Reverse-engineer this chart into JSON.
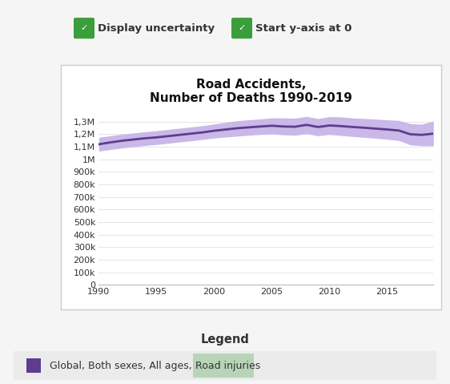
{
  "title": "Road Accidents,\nNumber of Deaths 1990-2019",
  "years": [
    1990,
    1991,
    1992,
    1993,
    1994,
    1995,
    1996,
    1997,
    1998,
    1999,
    2000,
    2001,
    2002,
    2003,
    2004,
    2005,
    2006,
    2007,
    2008,
    2009,
    2010,
    2011,
    2012,
    2013,
    2014,
    2015,
    2016,
    2017,
    2018,
    2019
  ],
  "values": [
    1120000,
    1135000,
    1148000,
    1158000,
    1168000,
    1175000,
    1185000,
    1195000,
    1205000,
    1215000,
    1228000,
    1238000,
    1248000,
    1255000,
    1262000,
    1268000,
    1262000,
    1260000,
    1275000,
    1258000,
    1270000,
    1265000,
    1258000,
    1252000,
    1245000,
    1238000,
    1230000,
    1200000,
    1195000,
    1205000
  ],
  "upper": [
    1175000,
    1188000,
    1200000,
    1210000,
    1220000,
    1228000,
    1238000,
    1248000,
    1258000,
    1268000,
    1282000,
    1295000,
    1308000,
    1315000,
    1322000,
    1330000,
    1330000,
    1328000,
    1342000,
    1325000,
    1340000,
    1338000,
    1330000,
    1325000,
    1320000,
    1315000,
    1310000,
    1285000,
    1280000,
    1305000
  ],
  "lower": [
    1065000,
    1078000,
    1090000,
    1100000,
    1110000,
    1118000,
    1128000,
    1138000,
    1148000,
    1158000,
    1170000,
    1178000,
    1185000,
    1192000,
    1198000,
    1202000,
    1195000,
    1192000,
    1205000,
    1188000,
    1198000,
    1190000,
    1182000,
    1175000,
    1168000,
    1160000,
    1150000,
    1115000,
    1108000,
    1108000
  ],
  "line_color": "#5e3d8f",
  "fill_color": "#c9b8e8",
  "ylim": [
    0,
    1400000
  ],
  "yticks": [
    0,
    100000,
    200000,
    300000,
    400000,
    500000,
    600000,
    700000,
    800000,
    900000,
    1000000,
    1100000,
    1200000,
    1300000
  ],
  "ytick_labels": [
    "0",
    "100k",
    "200k",
    "300k",
    "400k",
    "500k",
    "600k",
    "700k",
    "800k",
    "900k",
    "1M",
    "1,1M",
    "1,2M",
    "1,3M"
  ],
  "xticks": [
    1990,
    1995,
    2000,
    2005,
    2010,
    2015
  ],
  "legend_text_pre": "Global, Both sexes, All ages, ",
  "legend_highlight": "Road injuries",
  "legend_highlight_color": "#b8d4b8",
  "checkbox_color": "#3a9e3a",
  "outer_bg": "#f5f5f5",
  "panel_bg": "#ffffff",
  "panel_border": "#cccccc"
}
